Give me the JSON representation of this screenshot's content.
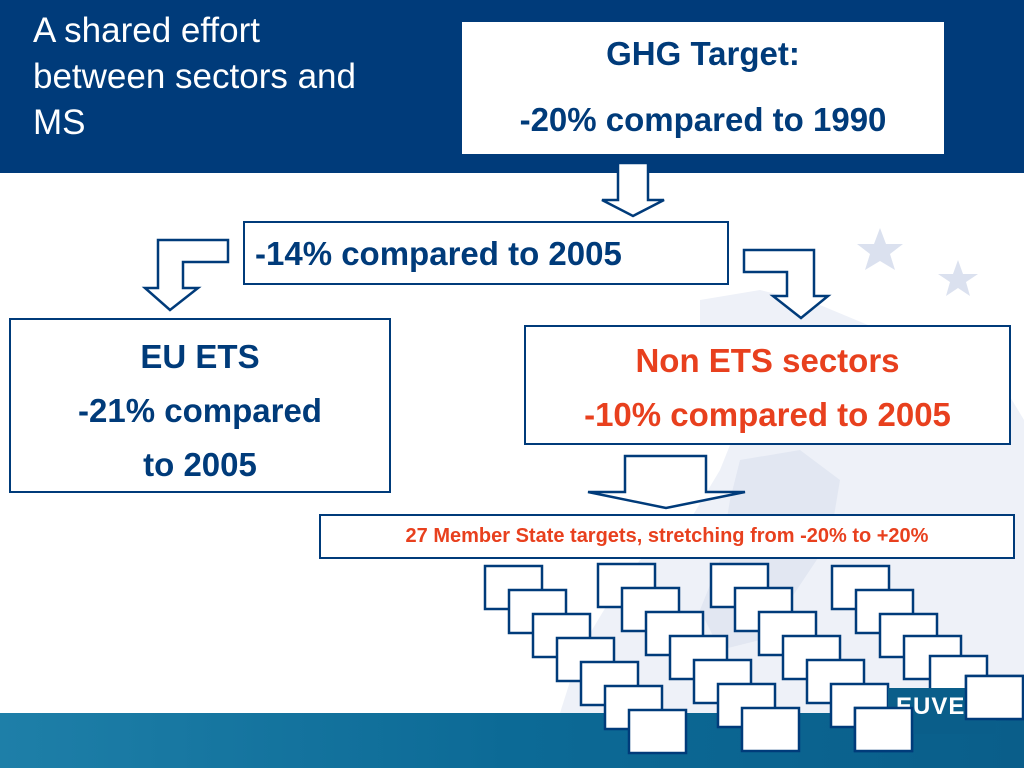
{
  "slide": {
    "title_lines": [
      "A shared effort",
      "between sectors and",
      "MS"
    ]
  },
  "ghg_target": {
    "line1": "GHG Target:",
    "line2": "-20% compared to 1990"
  },
  "mid_target": {
    "label": "-14% compared to 2005"
  },
  "eu_ets": {
    "line1": "EU ETS",
    "line2": "-21% compared",
    "line3": "to 2005"
  },
  "non_ets": {
    "line1": "Non ETS sectors",
    "line2": "-10% compared to 2005"
  },
  "member_states": {
    "label": "27 Member State targets, stretching from -20% to +20%"
  },
  "logo": {
    "text": "EUVE"
  },
  "colors": {
    "header_blue": "#003b7a",
    "accent_red": "#e8401e",
    "teal_band": "#0c6a96"
  }
}
